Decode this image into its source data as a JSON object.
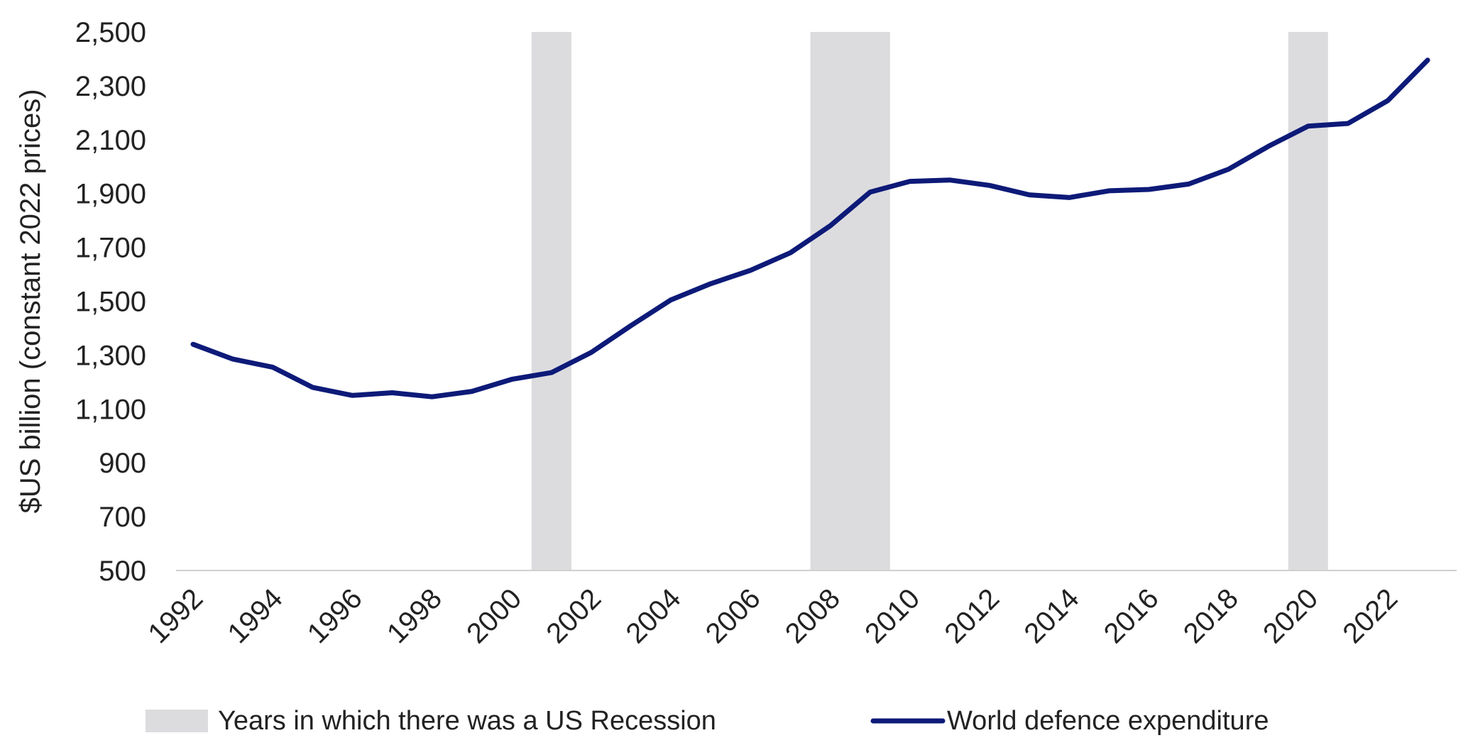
{
  "chart_data": {
    "type": "line",
    "title": "",
    "xlabel": "",
    "ylabel": "$US billion (constant 2022 prices)",
    "ylim": [
      500,
      2500
    ],
    "yticks": [
      500,
      700,
      900,
      1100,
      1300,
      1500,
      1700,
      1900,
      2100,
      2300,
      2500
    ],
    "ytick_labels": [
      "500",
      "700",
      "900",
      "1,100",
      "1,300",
      "1,500",
      "1,700",
      "1,900",
      "2,100",
      "2,300",
      "2,500"
    ],
    "xlim": [
      1992,
      2023
    ],
    "xticks": [
      1992,
      1994,
      1996,
      1998,
      2000,
      2002,
      2004,
      2006,
      2008,
      2010,
      2012,
      2014,
      2016,
      2018,
      2020,
      2022
    ],
    "xtick_labels": [
      "1992",
      "1994",
      "1996",
      "1998",
      "2000",
      "2002",
      "2004",
      "2006",
      "2008",
      "2010",
      "2012",
      "2014",
      "2016",
      "2018",
      "2020",
      "2022"
    ],
    "grid": false,
    "legend_position": "bottom",
    "recession_bands": [
      {
        "start": 2000.5,
        "end": 2001.5
      },
      {
        "start": 2007.5,
        "end": 2009.5
      },
      {
        "start": 2019.5,
        "end": 2020.5
      }
    ],
    "recession_label": "Years in which there was a US Recession",
    "recession_color": "#dcdcdf",
    "series": [
      {
        "name": "World defence expenditure",
        "color": "#0d1a78",
        "x": [
          1992,
          1993,
          1994,
          1995,
          1996,
          1997,
          1998,
          1999,
          2000,
          2001,
          2002,
          2003,
          2004,
          2005,
          2006,
          2007,
          2008,
          2009,
          2010,
          2011,
          2012,
          2013,
          2014,
          2015,
          2016,
          2017,
          2018,
          2019,
          2020,
          2021,
          2022,
          2023
        ],
        "values": [
          1340,
          1285,
          1255,
          1180,
          1150,
          1160,
          1145,
          1165,
          1210,
          1235,
          1310,
          1410,
          1505,
          1565,
          1615,
          1680,
          1780,
          1905,
          1945,
          1950,
          1930,
          1895,
          1885,
          1910,
          1915,
          1935,
          1990,
          2075,
          2150,
          2160,
          2245,
          2395
        ]
      }
    ]
  }
}
